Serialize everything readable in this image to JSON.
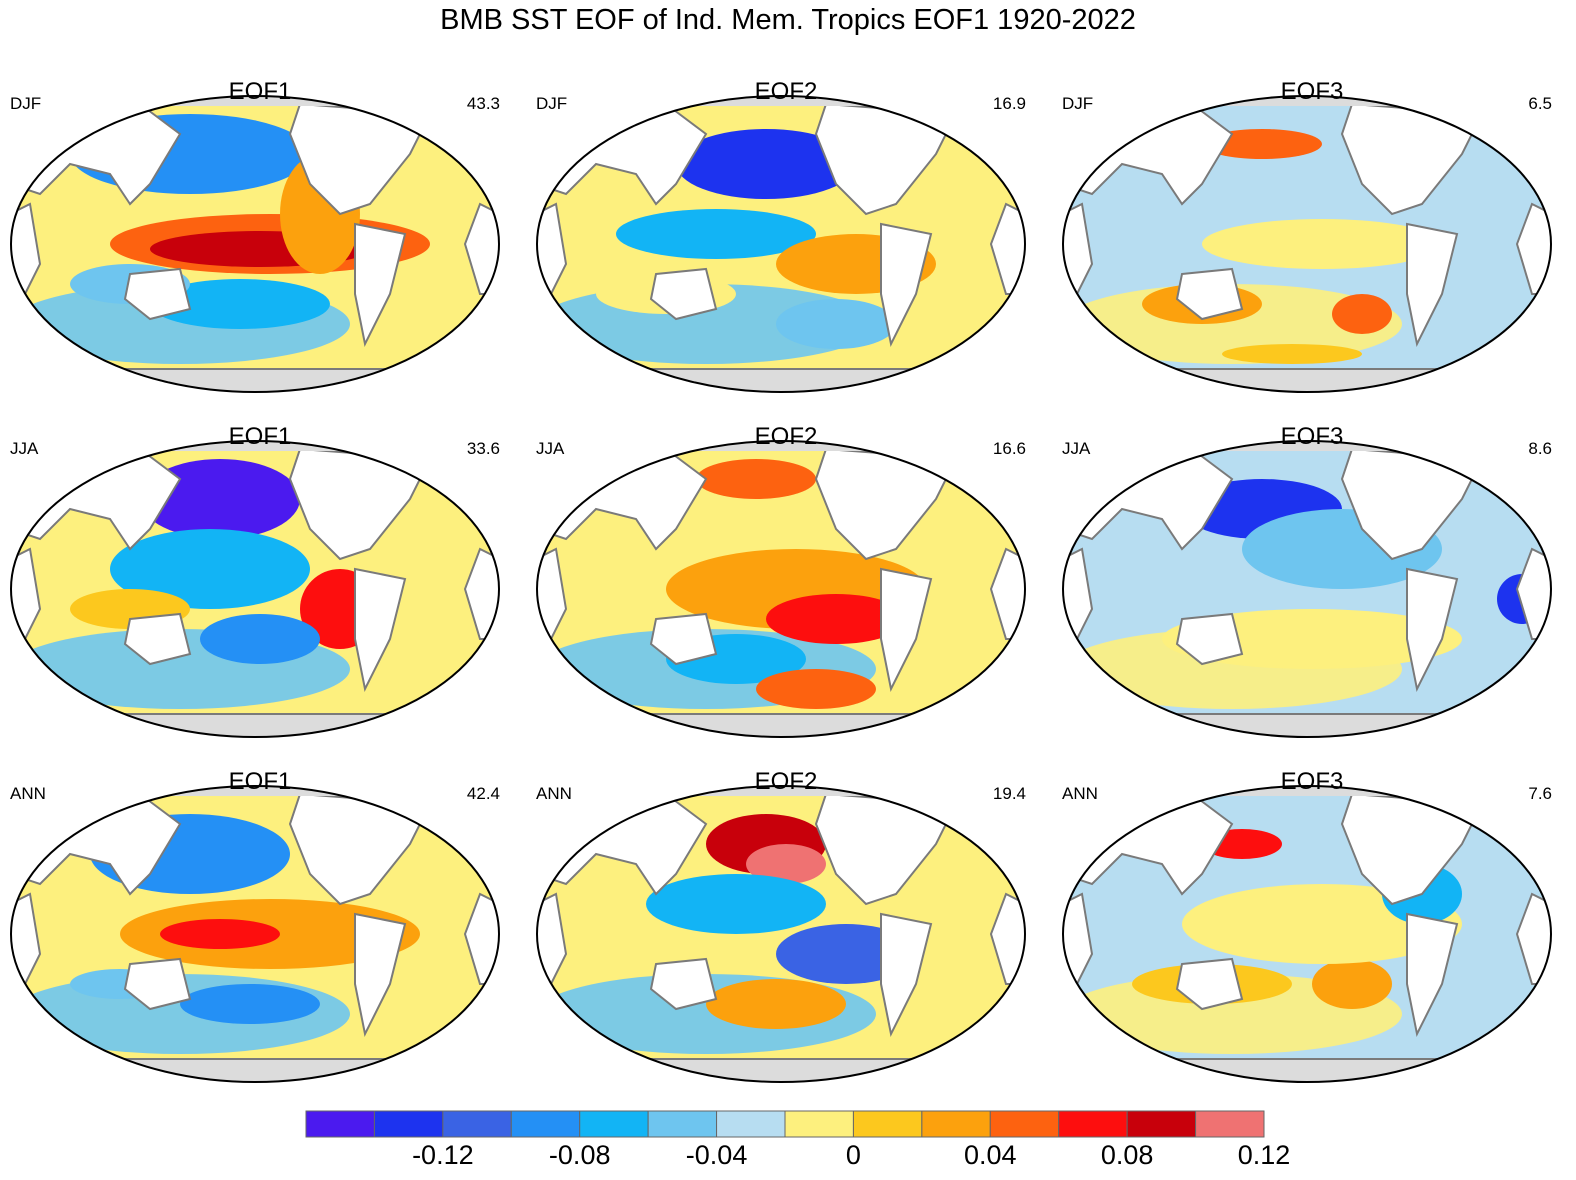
{
  "title": "BMB SST EOF of Ind. Mem. Tropics EOF1 1920-2022",
  "panels": [
    {
      "eof": "EOF1",
      "season": "DJF",
      "variance": "43.3"
    },
    {
      "eof": "EOF2",
      "season": "DJF",
      "variance": "16.9"
    },
    {
      "eof": "EOF3",
      "season": "DJF",
      "variance": "6.5"
    },
    {
      "eof": "EOF1",
      "season": "JJA",
      "variance": "33.6"
    },
    {
      "eof": "EOF2",
      "season": "JJA",
      "variance": "16.6"
    },
    {
      "eof": "EOF3",
      "season": "JJA",
      "variance": "8.6"
    },
    {
      "eof": "EOF1",
      "season": "ANN",
      "variance": "42.4"
    },
    {
      "eof": "EOF2",
      "season": "ANN",
      "variance": "19.4"
    },
    {
      "eof": "EOF3",
      "season": "ANN",
      "variance": "7.6"
    }
  ],
  "colorbar": {
    "colors": [
      "#4b1aef",
      "#1d33ef",
      "#3a63e4",
      "#2490f5",
      "#12b4f5",
      "#6ec5ef",
      "#b7ddf1",
      "#fdf07e",
      "#fcc81e",
      "#fca10d",
      "#fd6210",
      "#fd0e0e",
      "#c8000b",
      "#ef7272"
    ],
    "tick_labels": [
      "-0.12",
      "-0.08",
      "-0.04",
      "0",
      "0.04",
      "0.08",
      "0.12"
    ]
  },
  "colors": {
    "land": "#ffffff",
    "coast": "#7a7a7a",
    "antarctica": "#dcdcdc",
    "ocean_neutral": "#b7ddf1"
  }
}
